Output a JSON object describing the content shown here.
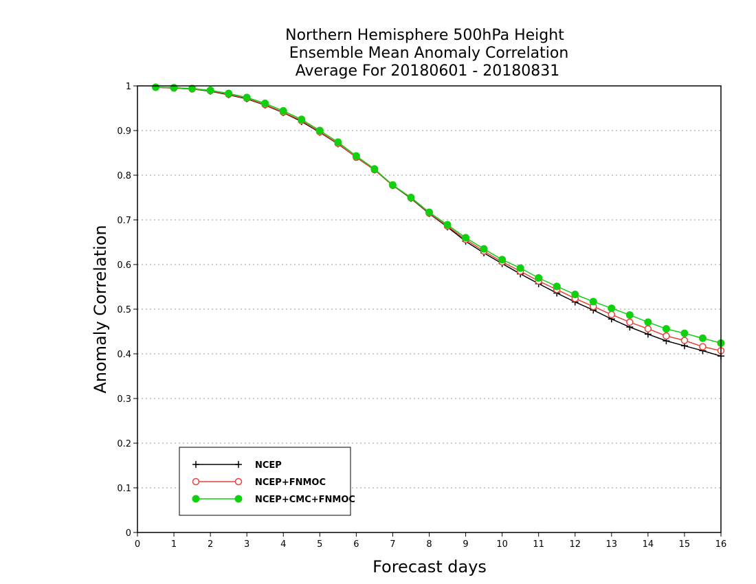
{
  "chart_data": {
    "type": "line",
    "title_lines": [
      "Northern Hemisphere 500hPa Height",
      "Ensemble Mean Anomaly Correlation",
      "Average For 20180601 - 20180831"
    ],
    "xlabel": "Forecast days",
    "ylabel": "Anomaly Correlation",
    "xlim": [
      0,
      16
    ],
    "ylim": [
      0,
      1
    ],
    "x_ticks": [
      0,
      1,
      2,
      3,
      4,
      5,
      6,
      7,
      8,
      9,
      10,
      11,
      12,
      13,
      14,
      15,
      16
    ],
    "y_ticks": [
      0,
      0.1,
      0.2,
      0.3,
      0.4,
      0.5,
      0.6,
      0.7,
      0.8,
      0.9,
      1
    ],
    "y_tick_labels": [
      "0",
      "0.1",
      "0.2",
      "0.3",
      "0.4",
      "0.5",
      "0.6",
      "0.7",
      "0.8",
      "0.9",
      "1"
    ],
    "grid": "horizontal dotted",
    "legend_position": "bottom-left",
    "x": [
      0.5,
      1,
      1.5,
      2,
      2.5,
      3,
      3.5,
      4,
      4.5,
      5,
      5.5,
      6,
      6.5,
      7,
      7.5,
      8,
      8.5,
      9,
      9.5,
      10,
      10.5,
      11,
      11.5,
      12,
      12.5,
      13,
      13.5,
      14,
      14.5,
      15,
      15.5,
      16
    ],
    "series": [
      {
        "name": "NCEP",
        "color": "#000000",
        "marker": "plus",
        "values": [
          0.997,
          0.995,
          0.993,
          0.988,
          0.98,
          0.971,
          0.957,
          0.94,
          0.92,
          0.896,
          0.87,
          0.84,
          0.812,
          0.777,
          0.748,
          0.714,
          0.684,
          0.652,
          0.626,
          0.602,
          0.579,
          0.557,
          0.536,
          0.516,
          0.498,
          0.478,
          0.46,
          0.444,
          0.429,
          0.418,
          0.407,
          0.395
        ]
      },
      {
        "name": "NCEP+FNMOC",
        "color": "#e8403a",
        "marker": "open-circle",
        "values": [
          0.997,
          0.995,
          0.993,
          0.989,
          0.981,
          0.972,
          0.958,
          0.941,
          0.922,
          0.897,
          0.871,
          0.84,
          0.812,
          0.777,
          0.749,
          0.715,
          0.686,
          0.656,
          0.63,
          0.606,
          0.585,
          0.563,
          0.544,
          0.524,
          0.506,
          0.488,
          0.471,
          0.456,
          0.44,
          0.43,
          0.416,
          0.407
        ]
      },
      {
        "name": "NCEP+CMC+FNMOC",
        "color": "#10d010",
        "marker": "filled-circle",
        "values": [
          0.997,
          0.996,
          0.994,
          0.99,
          0.983,
          0.974,
          0.961,
          0.944,
          0.925,
          0.9,
          0.874,
          0.843,
          0.814,
          0.778,
          0.75,
          0.717,
          0.689,
          0.66,
          0.635,
          0.611,
          0.592,
          0.57,
          0.551,
          0.533,
          0.517,
          0.502,
          0.487,
          0.471,
          0.456,
          0.446,
          0.435,
          0.424
        ]
      }
    ]
  }
}
